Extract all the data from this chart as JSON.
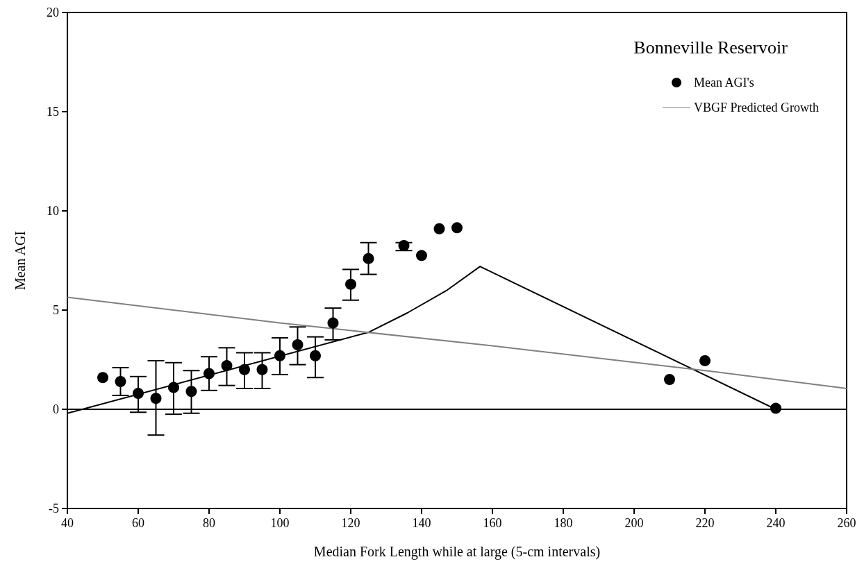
{
  "chart_data": {
    "type": "scatter",
    "xlabel": "Median Fork Length while at large (5-cm intervals)",
    "ylabel": "Mean AGI",
    "legend_title": "Bonneville Reservoir",
    "legend": "top right",
    "grid": false,
    "marker": "circle",
    "xlim": [
      40,
      260
    ],
    "xticks": [
      40,
      60,
      80,
      100,
      120,
      140,
      160,
      180,
      200,
      220,
      240,
      260
    ],
    "ylim": [
      -5,
      20
    ],
    "yticks": [
      -5,
      0,
      5,
      10,
      15,
      20
    ],
    "ref_lines": [
      {
        "axis": "y",
        "value": 0,
        "color": "#000000"
      }
    ],
    "series": [
      {
        "name": "Mean AGI's",
        "color": "#000000",
        "x": [
          50,
          55,
          60,
          65,
          70,
          75,
          80,
          85,
          90,
          95,
          100,
          105,
          110,
          115,
          120,
          125,
          135,
          140,
          145,
          150,
          210,
          220,
          240
        ],
        "values": [
          1.6,
          1.4,
          0.8,
          0.55,
          1.1,
          0.9,
          1.8,
          2.2,
          2.0,
          2.0,
          2.7,
          3.25,
          2.7,
          4.35,
          6.3,
          7.6,
          8.25,
          7.75,
          9.1,
          9.15,
          1.5,
          2.45,
          0.05
        ],
        "errors": [
          null,
          [
            0.7,
            2.1
          ],
          [
            -0.15,
            1.65
          ],
          [
            -1.3,
            2.45
          ],
          [
            -0.25,
            2.35
          ],
          [
            -0.2,
            1.95
          ],
          [
            0.95,
            2.65
          ],
          [
            1.2,
            3.1
          ],
          [
            1.05,
            2.85
          ],
          [
            1.05,
            2.85
          ],
          [
            1.75,
            3.6
          ],
          [
            2.25,
            4.15
          ],
          [
            1.6,
            3.65
          ],
          [
            3.5,
            5.1
          ],
          [
            5.5,
            7.05
          ],
          [
            6.8,
            8.4
          ],
          [
            8.0,
            8.4
          ],
          null,
          null,
          null,
          null,
          null,
          null
        ]
      },
      {
        "type": "line",
        "color": "#000000",
        "line_style": "solid",
        "marker": "none",
        "x": [
          40,
          125,
          136,
          147,
          156.5,
          240
        ],
        "values": [
          -0.2,
          3.88,
          4.86,
          5.98,
          7.2,
          0
        ]
      },
      {
        "name": "VBGF Predicted Growth",
        "type": "line",
        "color": "#808080",
        "line_style": "solid",
        "marker": "none",
        "x": [
          40,
          100,
          160,
          220,
          260
        ],
        "values": [
          5.65,
          4.35,
          3.2,
          1.95,
          1.05
        ]
      }
    ]
  }
}
